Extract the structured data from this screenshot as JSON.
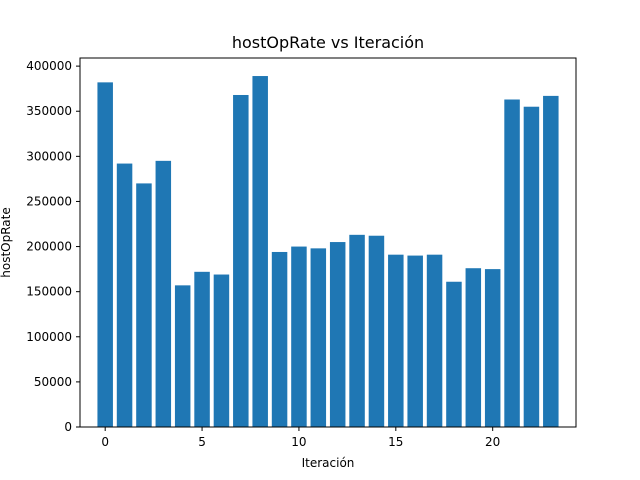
{
  "chart_data": {
    "type": "bar",
    "title": "hostOpRate vs Iteración",
    "xlabel": "Iteración",
    "ylabel": "hostOpRate",
    "x": [
      0,
      1,
      2,
      3,
      4,
      5,
      6,
      7,
      8,
      9,
      10,
      11,
      12,
      13,
      14,
      15,
      16,
      17,
      18,
      19,
      20,
      21,
      22,
      23
    ],
    "values": [
      382000,
      292000,
      270000,
      295000,
      157000,
      172000,
      169000,
      368000,
      389000,
      194000,
      200000,
      198000,
      205000,
      213000,
      212000,
      191000,
      190000,
      191000,
      161000,
      176000,
      175000,
      363000,
      355000,
      367000
    ],
    "xlim": [
      -1.3,
      24.3
    ],
    "ylim": [
      0,
      409000
    ],
    "xticks": [
      0,
      5,
      10,
      15,
      20
    ],
    "yticks": [
      0,
      50000,
      100000,
      150000,
      200000,
      250000,
      300000,
      350000,
      400000
    ],
    "bar_color": "#1f77b4",
    "grid": false,
    "legend": false
  }
}
